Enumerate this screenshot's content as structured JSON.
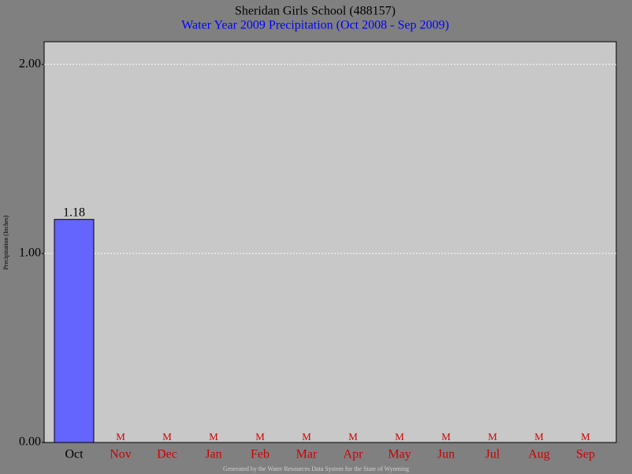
{
  "chart_data": {
    "type": "bar",
    "title": "Sheridan Girls School (488157)",
    "subtitle": "Water Year 2009 Precipitation (Oct 2008 - Sep 2009)",
    "y_label": "Precipitation (Inches)",
    "footer": "Generated by the Water Resources Data System for the State of Wyoming",
    "categories": [
      "Oct",
      "Nov",
      "Dec",
      "Jan",
      "Feb",
      "Mar",
      "Apr",
      "May",
      "Jun",
      "Jul",
      "Aug",
      "Sep"
    ],
    "values": [
      1.18,
      null,
      null,
      null,
      null,
      null,
      null,
      null,
      null,
      null,
      null,
      null
    ],
    "value_labels": [
      "1.18",
      "M",
      "M",
      "M",
      "M",
      "M",
      "M",
      "M",
      "M",
      "M",
      "M",
      "M"
    ],
    "color": "#6464ff",
    "missing_color": "#cc0000",
    "ylim": [
      0,
      2.12
    ],
    "yticks": [
      {
        "value": 0,
        "label": "0.00"
      },
      {
        "value": 1,
        "label": "1.00"
      },
      {
        "value": 2,
        "label": "2.00"
      }
    ],
    "grid": true
  }
}
